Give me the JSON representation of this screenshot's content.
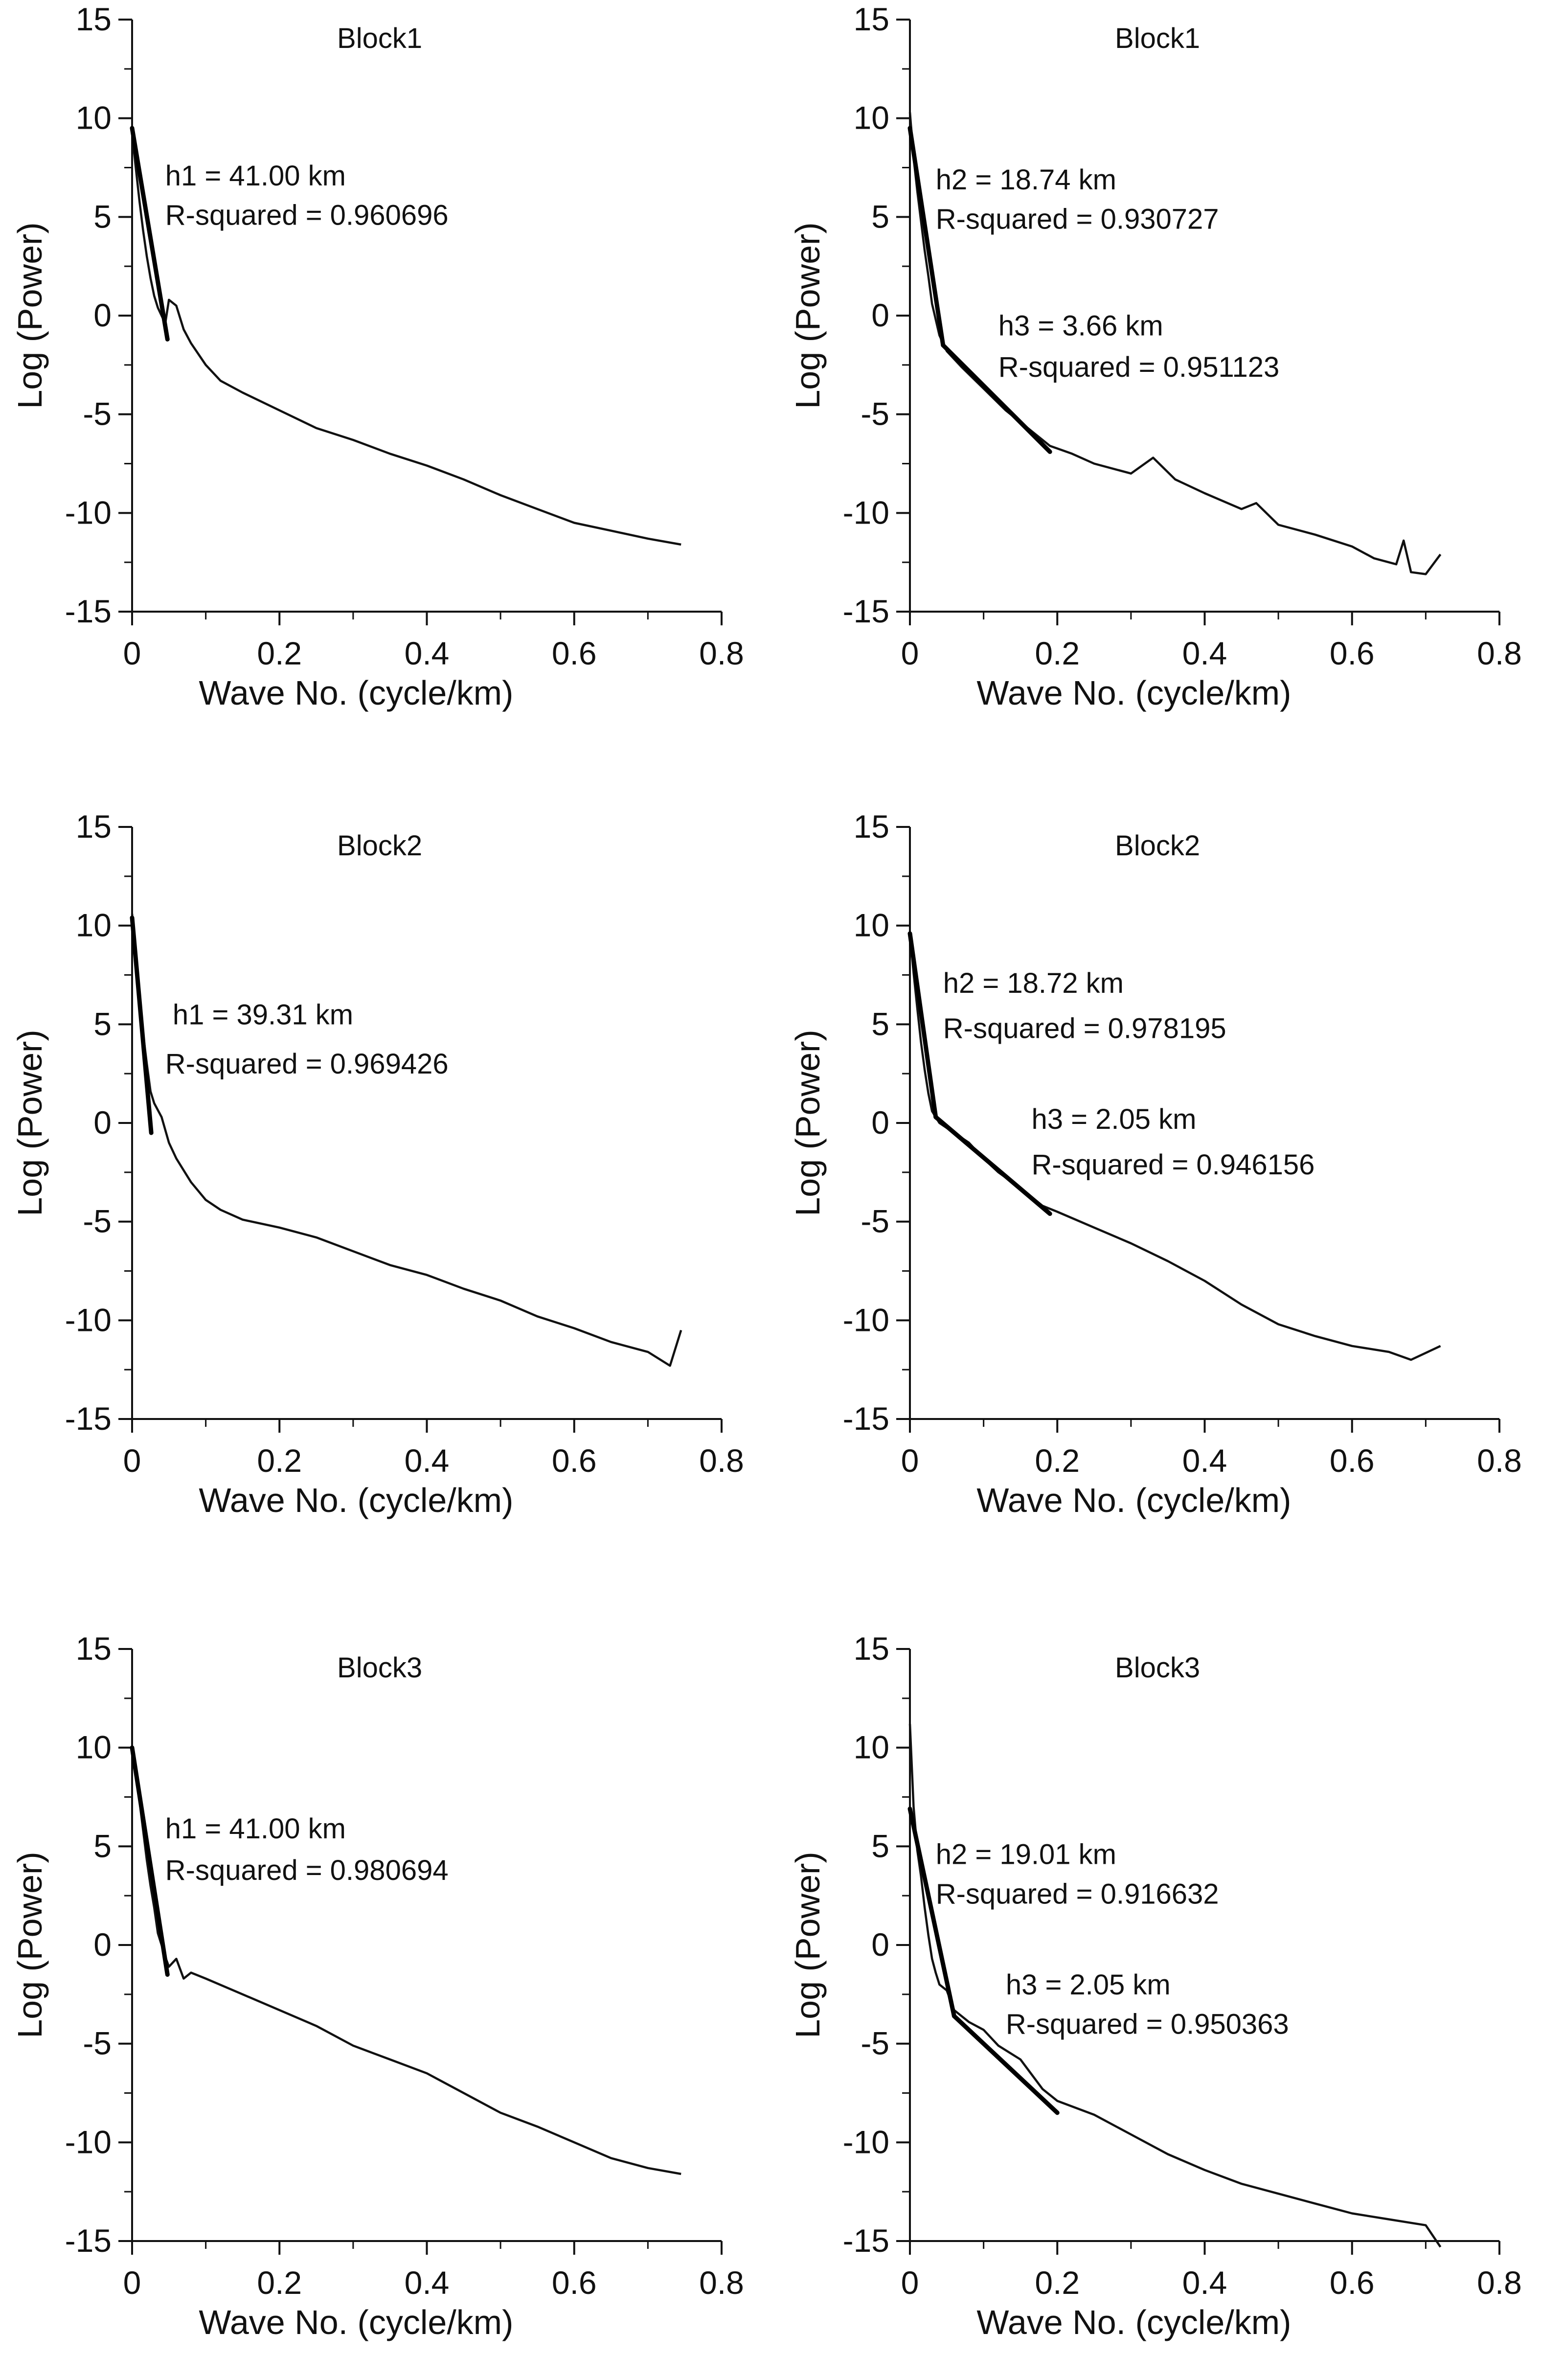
{
  "figure": {
    "style": {
      "line_color": "#111111",
      "fit_color": "#000000",
      "background": "#ffffff"
    }
  },
  "chart_data": [
    {
      "type": "line",
      "title": "Block1",
      "xlabel": "Wave No. (cycle/km)",
      "ylabel": "Log (Power)",
      "xlim": [
        0,
        0.8
      ],
      "ylim": [
        -15,
        15
      ],
      "xticks": [
        0,
        0.2,
        0.4,
        0.6,
        0.8
      ],
      "xtick_labels": [
        "0",
        "0.2",
        "0.4",
        "0.6",
        "0.8"
      ],
      "yticks": [
        15,
        10,
        5,
        0,
        -5,
        -10,
        -15
      ],
      "ytick_labels": [
        "15",
        "10",
        "5",
        "0",
        "-5",
        "-10",
        "-15"
      ],
      "series": [
        {
          "name": "spectrum",
          "x": [
            0,
            0.005,
            0.01,
            0.015,
            0.02,
            0.025,
            0.03,
            0.035,
            0.04,
            0.045,
            0.05,
            0.06,
            0.07,
            0.08,
            0.1,
            0.12,
            0.15,
            0.2,
            0.25,
            0.3,
            0.35,
            0.4,
            0.45,
            0.5,
            0.55,
            0.6,
            0.65,
            0.7,
            0.745
          ],
          "y": [
            9.2,
            7.5,
            5.8,
            4.3,
            3.0,
            1.9,
            1.0,
            0.4,
            0.0,
            -0.4,
            0.8,
            0.5,
            -0.7,
            -1.4,
            -2.5,
            -3.3,
            -3.9,
            -4.8,
            -5.7,
            -6.3,
            -7.0,
            -7.6,
            -8.3,
            -9.1,
            -9.8,
            -10.5,
            -10.9,
            -11.3,
            -11.6
          ]
        }
      ],
      "fits": [
        {
          "label": "h1",
          "x": [
            0,
            0.048
          ],
          "y": [
            9.5,
            -1.2
          ]
        }
      ],
      "annotations": [
        {
          "text": "h1 = 41.00 km",
          "x": 0.045,
          "y": 6.6
        },
        {
          "text": "R-squared = 0.960696",
          "x": 0.045,
          "y": 4.6
        }
      ]
    },
    {
      "type": "line",
      "title": "Block1",
      "xlabel": "Wave No. (cycle/km)",
      "ylabel": "Log (Power)",
      "xlim": [
        0,
        0.8
      ],
      "ylim": [
        -15,
        15
      ],
      "xticks": [
        0,
        0.2,
        0.4,
        0.6,
        0.8
      ],
      "xtick_labels": [
        "0",
        "0.2",
        "0.4",
        "0.6",
        "0.8"
      ],
      "yticks": [
        15,
        10,
        5,
        0,
        -5,
        -10,
        -15
      ],
      "ytick_labels": [
        "15",
        "10",
        "5",
        "0",
        "-5",
        "-10",
        "-15"
      ],
      "series": [
        {
          "name": "spectrum",
          "x": [
            0,
            0.005,
            0.01,
            0.015,
            0.02,
            0.025,
            0.03,
            0.04,
            0.05,
            0.07,
            0.1,
            0.13,
            0.16,
            0.19,
            0.22,
            0.25,
            0.3,
            0.33,
            0.36,
            0.4,
            0.45,
            0.47,
            0.5,
            0.55,
            0.6,
            0.63,
            0.66,
            0.67,
            0.68,
            0.7,
            0.72
          ],
          "y": [
            10.3,
            8.0,
            6.3,
            4.8,
            3.3,
            2.0,
            0.6,
            -1.0,
            -1.8,
            -2.6,
            -3.7,
            -4.8,
            -5.7,
            -6.6,
            -7.0,
            -7.5,
            -8.0,
            -7.2,
            -8.3,
            -9.0,
            -9.8,
            -9.5,
            -10.6,
            -11.1,
            -11.7,
            -12.3,
            -12.6,
            -11.4,
            -13.0,
            -13.1,
            -12.1
          ]
        }
      ],
      "fits": [
        {
          "label": "h2",
          "x": [
            0,
            0.045
          ],
          "y": [
            9.5,
            -1.5
          ]
        },
        {
          "label": "h3",
          "x": [
            0.045,
            0.19
          ],
          "y": [
            -1.5,
            -6.9
          ]
        }
      ],
      "annotations": [
        {
          "text": "h2 = 18.74 km",
          "x": 0.035,
          "y": 6.4
        },
        {
          "text": "R-squared = 0.930727",
          "x": 0.035,
          "y": 4.4
        },
        {
          "text": "h3 = 3.66 km",
          "x": 0.12,
          "y": -1.0
        },
        {
          "text": "R-squared = 0.951123",
          "x": 0.12,
          "y": -3.1
        }
      ]
    },
    {
      "type": "line",
      "title": "Block2",
      "xlabel": "Wave No. (cycle/km)",
      "ylabel": "Log (Power)",
      "xlim": [
        0,
        0.8
      ],
      "ylim": [
        -15,
        15
      ],
      "xticks": [
        0,
        0.2,
        0.4,
        0.6,
        0.8
      ],
      "xtick_labels": [
        "0",
        "0.2",
        "0.4",
        "0.6",
        "0.8"
      ],
      "yticks": [
        15,
        10,
        5,
        0,
        -5,
        -10,
        -15
      ],
      "ytick_labels": [
        "15",
        "10",
        "5",
        "0",
        "-5",
        "-10",
        "-15"
      ],
      "series": [
        {
          "name": "spectrum",
          "x": [
            0,
            0.005,
            0.01,
            0.015,
            0.02,
            0.025,
            0.03,
            0.04,
            0.05,
            0.06,
            0.08,
            0.1,
            0.12,
            0.15,
            0.2,
            0.25,
            0.3,
            0.35,
            0.4,
            0.45,
            0.5,
            0.55,
            0.6,
            0.65,
            0.7,
            0.73,
            0.745
          ],
          "y": [
            10.6,
            8.5,
            6.5,
            4.5,
            3.0,
            1.6,
            1.0,
            0.3,
            -1.0,
            -1.8,
            -3.0,
            -3.9,
            -4.4,
            -4.9,
            -5.3,
            -5.8,
            -6.5,
            -7.2,
            -7.7,
            -8.4,
            -9.0,
            -9.8,
            -10.4,
            -11.1,
            -11.6,
            -12.3,
            -10.5
          ]
        }
      ],
      "fits": [
        {
          "label": "h1",
          "x": [
            0,
            0.026
          ],
          "y": [
            10.4,
            -0.5
          ]
        }
      ],
      "annotations": [
        {
          "text": "h1 = 39.31 km",
          "x": 0.055,
          "y": 5.0
        },
        {
          "text": "R-squared = 0.969426",
          "x": 0.045,
          "y": 2.5
        }
      ]
    },
    {
      "type": "line",
      "title": "Block2",
      "xlabel": "Wave No. (cycle/km)",
      "ylabel": "Log (Power)",
      "xlim": [
        0,
        0.8
      ],
      "ylim": [
        -15,
        15
      ],
      "xticks": [
        0,
        0.2,
        0.4,
        0.6,
        0.8
      ],
      "xtick_labels": [
        "0",
        "0.2",
        "0.4",
        "0.6",
        "0.8"
      ],
      "yticks": [
        15,
        10,
        5,
        0,
        -5,
        -10,
        -15
      ],
      "ytick_labels": [
        "15",
        "10",
        "5",
        "0",
        "-5",
        "-10",
        "-15"
      ],
      "series": [
        {
          "name": "spectrum",
          "x": [
            0,
            0.005,
            0.01,
            0.015,
            0.02,
            0.025,
            0.03,
            0.04,
            0.06,
            0.08,
            0.1,
            0.12,
            0.15,
            0.18,
            0.2,
            0.25,
            0.3,
            0.35,
            0.4,
            0.45,
            0.5,
            0.55,
            0.6,
            0.65,
            0.68,
            0.72
          ],
          "y": [
            9.6,
            7.6,
            5.8,
            4.1,
            2.7,
            1.5,
            0.6,
            0.0,
            -0.5,
            -1.0,
            -1.8,
            -2.5,
            -3.3,
            -4.2,
            -4.5,
            -5.3,
            -6.1,
            -7.0,
            -8.0,
            -9.2,
            -10.2,
            -10.8,
            -11.3,
            -11.6,
            -12.0,
            -11.3
          ]
        }
      ],
      "fits": [
        {
          "label": "h2",
          "x": [
            0,
            0.035
          ],
          "y": [
            9.6,
            0.3
          ]
        },
        {
          "label": "h3",
          "x": [
            0.035,
            0.19
          ],
          "y": [
            0.3,
            -4.6
          ]
        }
      ],
      "annotations": [
        {
          "text": "h2 = 18.72 km",
          "x": 0.045,
          "y": 6.6
        },
        {
          "text": "R-squared = 0.978195",
          "x": 0.045,
          "y": 4.3
        },
        {
          "text": "h3 = 2.05 km",
          "x": 0.165,
          "y": -0.3
        },
        {
          "text": "R-squared = 0.946156",
          "x": 0.165,
          "y": -2.6
        }
      ]
    },
    {
      "type": "line",
      "title": "Block3",
      "xlabel": "Wave No. (cycle/km)",
      "ylabel": "Log (Power)",
      "xlim": [
        0,
        0.8
      ],
      "ylim": [
        -15,
        15
      ],
      "xticks": [
        0,
        0.2,
        0.4,
        0.6,
        0.8
      ],
      "xtick_labels": [
        "0",
        "0.2",
        "0.4",
        "0.6",
        "0.8"
      ],
      "yticks": [
        15,
        10,
        5,
        0,
        -5,
        -10,
        -15
      ],
      "ytick_labels": [
        "15",
        "10",
        "5",
        "0",
        "-5",
        "-10",
        "-15"
      ],
      "series": [
        {
          "name": "spectrum",
          "x": [
            0,
            0.005,
            0.01,
            0.015,
            0.02,
            0.025,
            0.03,
            0.035,
            0.04,
            0.045,
            0.05,
            0.06,
            0.07,
            0.08,
            0.1,
            0.15,
            0.2,
            0.25,
            0.3,
            0.35,
            0.4,
            0.45,
            0.5,
            0.55,
            0.6,
            0.65,
            0.7,
            0.745
          ],
          "y": [
            9.9,
            8.7,
            7.3,
            5.8,
            4.3,
            3.0,
            1.9,
            0.6,
            0.0,
            -0.6,
            -1.1,
            -0.7,
            -1.7,
            -1.4,
            -1.7,
            -2.5,
            -3.3,
            -4.1,
            -5.1,
            -5.8,
            -6.5,
            -7.5,
            -8.5,
            -9.2,
            -10.0,
            -10.8,
            -11.3,
            -11.6
          ]
        }
      ],
      "fits": [
        {
          "label": "h1",
          "x": [
            0,
            0.048
          ],
          "y": [
            10.0,
            -1.5
          ]
        }
      ],
      "annotations": [
        {
          "text": "h1 = 41.00 km",
          "x": 0.045,
          "y": 5.4
        },
        {
          "text": "R-squared = 0.980694",
          "x": 0.045,
          "y": 3.3
        }
      ]
    },
    {
      "type": "line",
      "title": "Block3",
      "xlabel": "Wave No. (cycle/km)",
      "ylabel": "Log (Power)",
      "xlim": [
        0,
        0.8
      ],
      "ylim": [
        -15,
        15
      ],
      "xticks": [
        0,
        0.2,
        0.4,
        0.6,
        0.8
      ],
      "xtick_labels": [
        "0",
        "0.2",
        "0.4",
        "0.6",
        "0.8"
      ],
      "yticks": [
        15,
        10,
        5,
        0,
        -5,
        -10,
        -15
      ],
      "ytick_labels": [
        "15",
        "10",
        "5",
        "0",
        "-5",
        "-10",
        "-15"
      ],
      "series": [
        {
          "name": "spectrum",
          "x": [
            0,
            0.005,
            0.01,
            0.015,
            0.02,
            0.025,
            0.03,
            0.035,
            0.04,
            0.05,
            0.06,
            0.08,
            0.1,
            0.12,
            0.15,
            0.18,
            0.2,
            0.25,
            0.3,
            0.35,
            0.4,
            0.45,
            0.5,
            0.55,
            0.6,
            0.65,
            0.7,
            0.72
          ],
          "y": [
            11.2,
            7.0,
            4.8,
            3.5,
            1.9,
            0.5,
            -0.7,
            -1.4,
            -2.0,
            -2.3,
            -3.3,
            -3.9,
            -4.3,
            -5.1,
            -5.8,
            -7.3,
            -7.9,
            -8.6,
            -9.6,
            -10.6,
            -11.4,
            -12.1,
            -12.6,
            -13.1,
            -13.6,
            -13.9,
            -14.2,
            -15.3
          ]
        }
      ],
      "fits": [
        {
          "label": "h2",
          "x": [
            0,
            0.06
          ],
          "y": [
            6.9,
            -3.6
          ]
        },
        {
          "label": "h3",
          "x": [
            0.06,
            0.2
          ],
          "y": [
            -3.6,
            -8.5
          ]
        }
      ],
      "annotations": [
        {
          "text": "h2 = 19.01 km",
          "x": 0.035,
          "y": 4.1
        },
        {
          "text": "R-squared = 0.916632",
          "x": 0.035,
          "y": 2.1
        },
        {
          "text": "h3 = 2.05 km",
          "x": 0.13,
          "y": -2.5
        },
        {
          "text": "R-squared = 0.950363",
          "x": 0.13,
          "y": -4.5
        }
      ]
    }
  ]
}
